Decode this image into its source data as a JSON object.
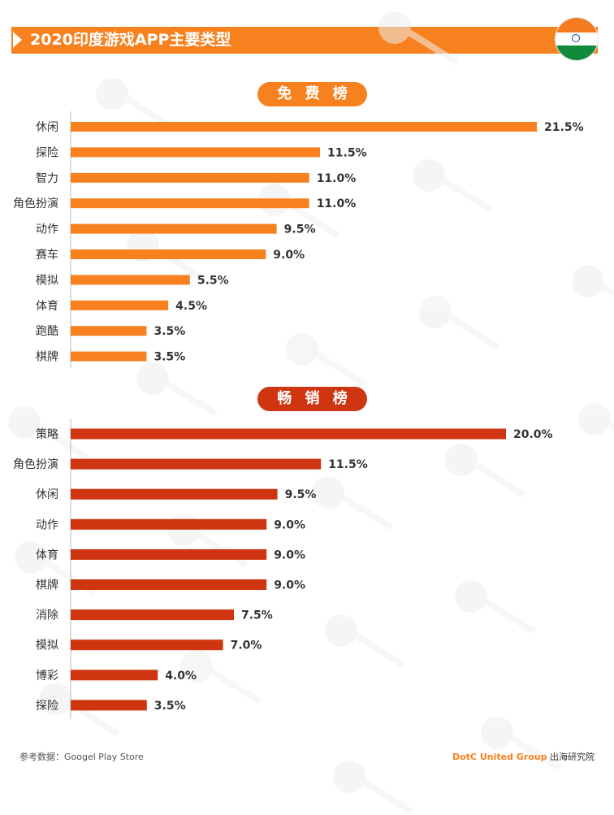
{
  "header": {
    "title": "2020印度游戏APP主要类型"
  },
  "sections": {
    "free": {
      "label": "免 费 榜"
    },
    "grossing": {
      "label": "畅 销 榜"
    }
  },
  "chart_data": [
    {
      "type": "bar",
      "orientation": "horizontal",
      "title": "免 费 榜",
      "categories": [
        "休闲",
        "探险",
        "智力",
        "角色扮演",
        "动作",
        "赛车",
        "模拟",
        "体育",
        "跑酷",
        "棋牌"
      ],
      "values": [
        21.5,
        11.5,
        11.0,
        11.0,
        9.5,
        9.0,
        5.5,
        4.5,
        3.5,
        3.5
      ],
      "value_labels": [
        "21.5%",
        "11.5%",
        "11.0%",
        "11.0%",
        "9.5%",
        "9.0%",
        "5.5%",
        "4.5%",
        "3.5%",
        "3.5%"
      ],
      "color": "#f7801f",
      "xlim": [
        0,
        22
      ],
      "grid": false,
      "legend": "none"
    },
    {
      "type": "bar",
      "orientation": "horizontal",
      "title": "畅 销 榜",
      "categories": [
        "策略",
        "角色扮演",
        "休闲",
        "动作",
        "体育",
        "棋牌",
        "消除",
        "模拟",
        "博彩",
        "探险"
      ],
      "values": [
        20.0,
        11.5,
        9.5,
        9.0,
        9.0,
        9.0,
        7.5,
        7.0,
        4.0,
        3.5
      ],
      "value_labels": [
        "20.0%",
        "11.5%",
        "9.5%",
        "9.0%",
        "9.0%",
        "9.0%",
        "7.5%",
        "7.0%",
        "4.0%",
        "3.5%"
      ],
      "color": "#cf3511",
      "xlim": [
        0,
        22
      ],
      "grid": false,
      "legend": "none"
    }
  ],
  "footer": {
    "source": "参考数据：Googel Play Store",
    "brand_name": "DotC United Group",
    "brand_suffix": " 出海研究院"
  },
  "colors": {
    "accent_orange": "#f7801f",
    "accent_red": "#cf3511",
    "flag_saffron": "#f47b20",
    "flag_green": "#128a3c",
    "flag_chakra": "#1c3f94"
  }
}
